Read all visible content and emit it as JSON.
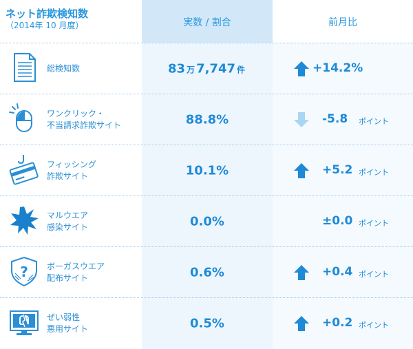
{
  "header": {
    "title": "ネット詐欺検知数",
    "subtitle": "（2014年 10 月度）",
    "col_ratio": "実数 / 割合",
    "col_compare": "前月比"
  },
  "colors": {
    "accent": "#1e8ad6",
    "arrow_up": "#1e8ad6",
    "arrow_down": "#a9d6f3"
  },
  "rows": [
    {
      "label1": "総検知数",
      "label2": "",
      "value_main": "83",
      "value_unit1": "万",
      "value_rest": "7,747",
      "value_unit2": "件",
      "compare": "+14.2%",
      "compare_unit": "",
      "trend": "up",
      "icon": "document-icon"
    },
    {
      "label1": "ワンクリック・",
      "label2": "不当請求詐欺サイト",
      "value_main": "88.8%",
      "compare": "-5.8",
      "compare_unit": "ポイント",
      "trend": "down",
      "icon": "mouse-click-icon"
    },
    {
      "label1": "フィッシング",
      "label2": "詐欺サイト",
      "value_main": "10.1%",
      "compare": "+5.2",
      "compare_unit": "ポイント",
      "trend": "up",
      "icon": "phishing-card-icon"
    },
    {
      "label1": "マルウエア",
      "label2": "感染サイト",
      "value_main": "0.0%",
      "compare": "±0.0",
      "compare_unit": "ポイント",
      "trend": "none",
      "icon": "malware-burst-icon"
    },
    {
      "label1": "ボーガスウエア",
      "label2": "配布サイト",
      "value_main": "0.6%",
      "compare": "+0.4",
      "compare_unit": "ポイント",
      "trend": "up",
      "icon": "shield-question-icon"
    },
    {
      "label1": "ぜい弱性",
      "label2": "悪用サイト",
      "value_main": "0.5%",
      "compare": "+0.2",
      "compare_unit": "ポイント",
      "trend": "up",
      "icon": "broken-monitor-icon"
    }
  ]
}
